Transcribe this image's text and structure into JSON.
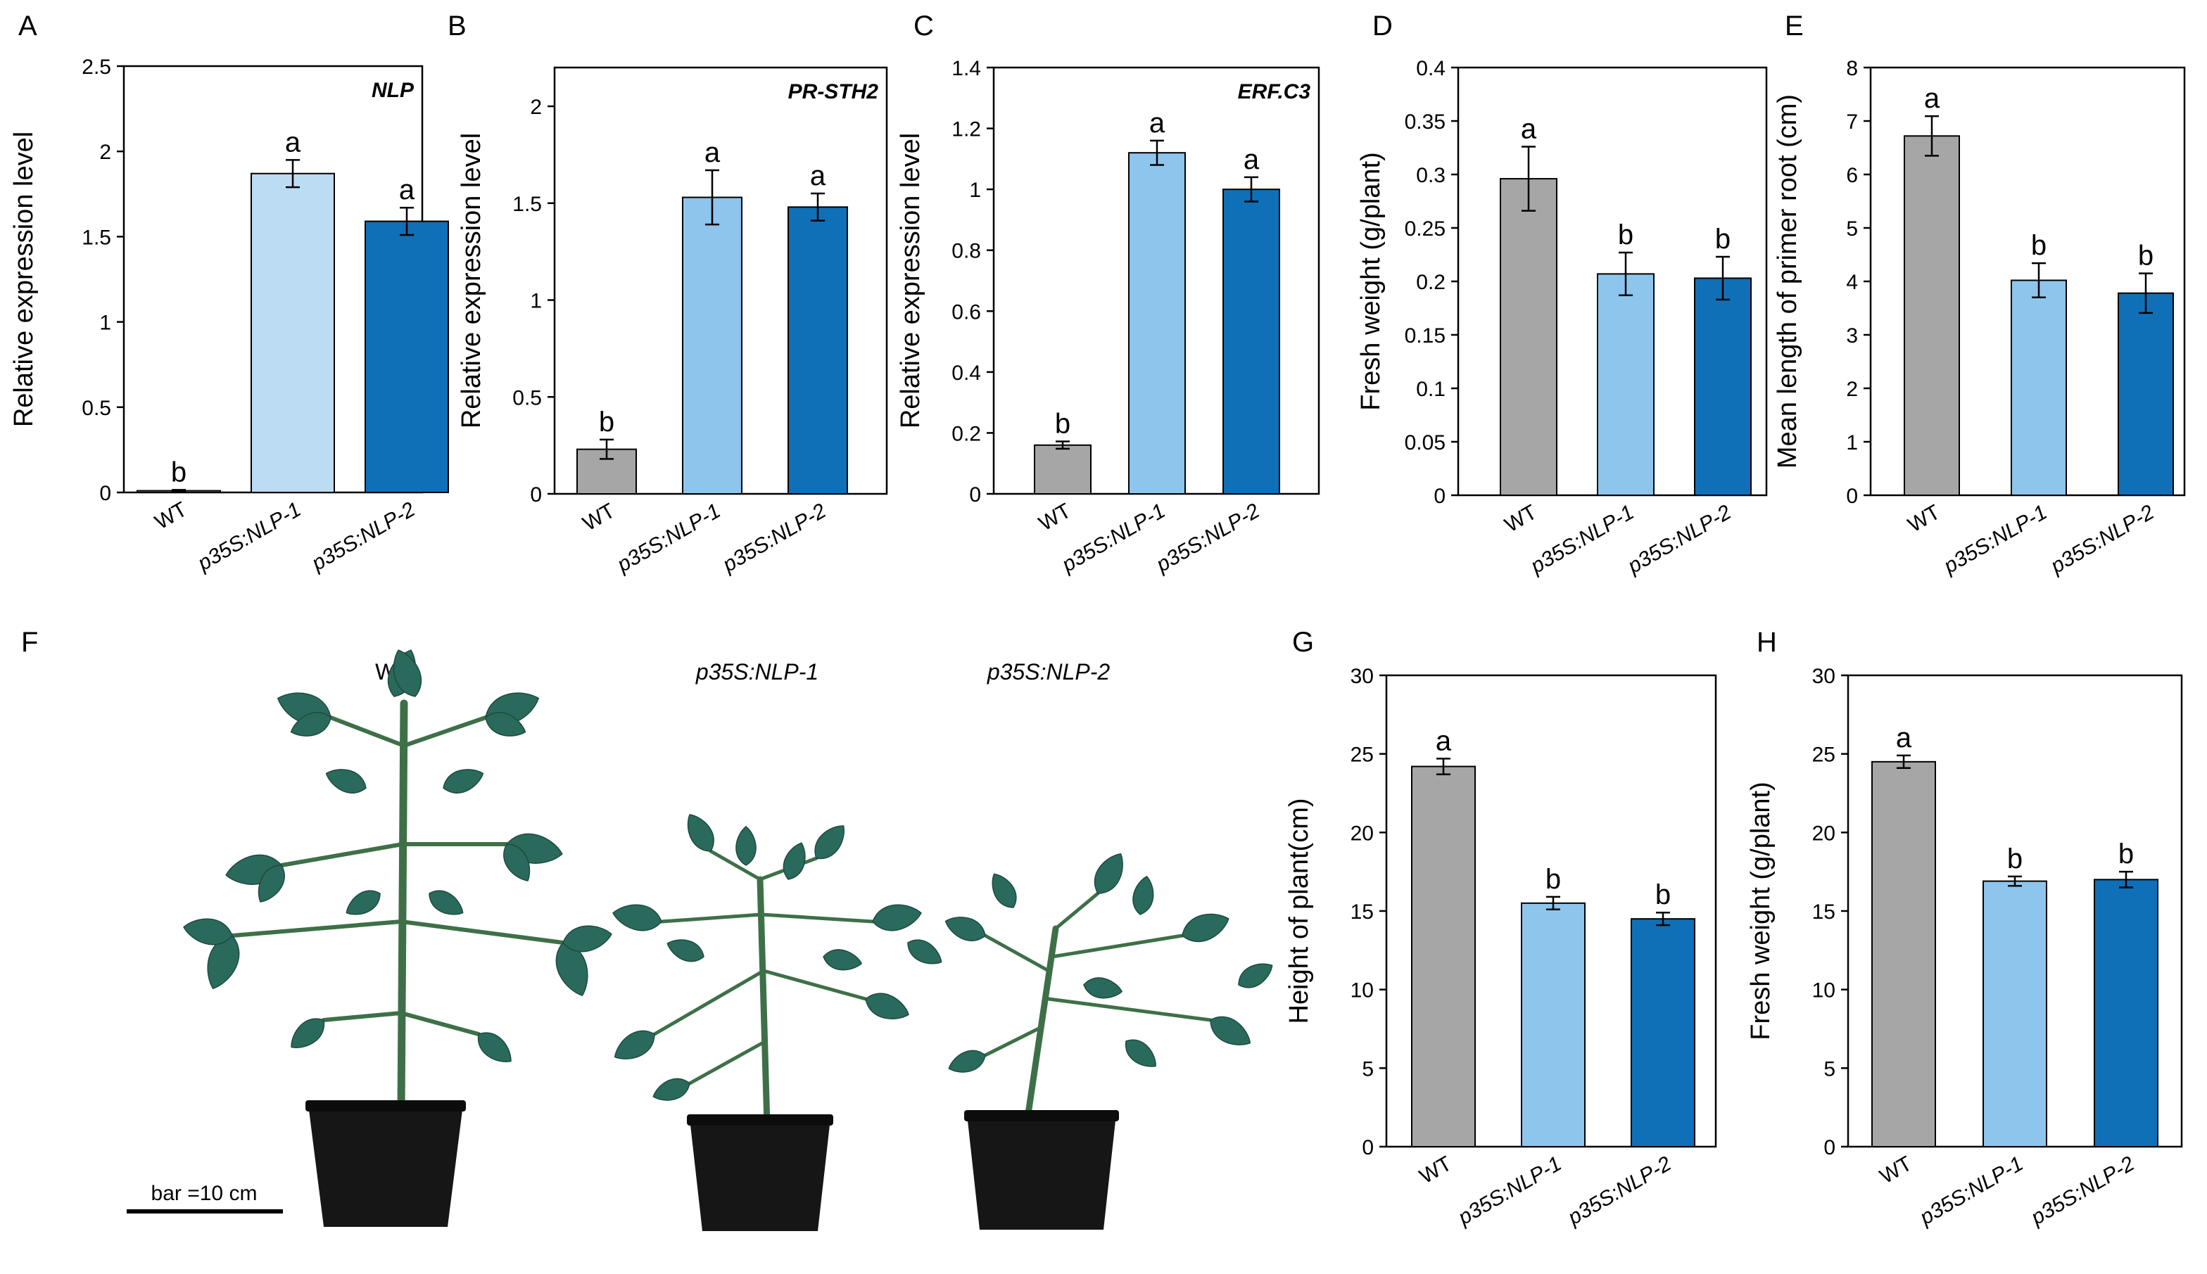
{
  "panel_letters": [
    "A",
    "B",
    "C",
    "D",
    "E",
    "F",
    "G",
    "H"
  ],
  "colors": {
    "wt": "#a6a6a6",
    "line1": "#8ec5ec",
    "line2": "#0f70b8",
    "light_blue_a": "#bcdcf3",
    "stem": "#3e7048",
    "leaf": "#2a6a5c",
    "pot": "#161616"
  },
  "photo": {
    "labels": [
      "WT",
      "p35S:NLP-1",
      "p35S:NLP-2"
    ],
    "scale_bar_label": "bar =10 cm"
  },
  "chart_data": [
    {
      "id": "A",
      "type": "bar",
      "gene_label": "NLP",
      "categories": [
        "WT",
        "p35S:NLP-1",
        "p35S:NLP-2"
      ],
      "values": [
        0.01,
        1.87,
        1.59
      ],
      "errors": [
        0.005,
        0.08,
        0.08
      ],
      "significance": [
        "b",
        "a",
        "a"
      ],
      "ylabel": "Relative expression  level",
      "ylim": [
        0,
        2.5
      ],
      "yticks": [
        0,
        0.5,
        1,
        1.5,
        2,
        2.5
      ],
      "ytick_labels": [
        "0",
        "0.5",
        "1",
        "1.5",
        "2",
        "2.5"
      ]
    },
    {
      "id": "B",
      "type": "bar",
      "gene_label": "PR-STH2",
      "categories": [
        "WT",
        "p35S:NLP-1",
        "p35S:NLP-2"
      ],
      "values": [
        0.23,
        1.53,
        1.48
      ],
      "errors": [
        0.05,
        0.14,
        0.07
      ],
      "significance": [
        "b",
        "a",
        "a"
      ],
      "ylabel": "Relative expression level",
      "ylim": [
        0,
        2.2
      ],
      "yticks": [
        0,
        0.5,
        1,
        1.5,
        2
      ],
      "ytick_labels": [
        "0",
        "0.5",
        "1",
        "1.5",
        "2"
      ]
    },
    {
      "id": "C",
      "type": "bar",
      "gene_label": "ERF.C3",
      "categories": [
        "WT",
        "p35S:NLP-1",
        "p35S:NLP-2"
      ],
      "values": [
        0.16,
        1.12,
        1.0
      ],
      "errors": [
        0.012,
        0.04,
        0.04
      ],
      "significance": [
        "b",
        "a",
        "a"
      ],
      "ylabel": "Relative  expression level",
      "ylim": [
        0,
        1.4
      ],
      "yticks": [
        0,
        0.2,
        0.4,
        0.6,
        0.8,
        1,
        1.2,
        1.4
      ],
      "ytick_labels": [
        "0",
        "0.2",
        "0.4",
        "0.6",
        "0.8",
        "1",
        "1.2",
        "1.4"
      ]
    },
    {
      "id": "D",
      "type": "bar",
      "gene_label": "",
      "categories": [
        "WT",
        "p35S:NLP-1",
        "p35S:NLP-2"
      ],
      "values": [
        0.296,
        0.207,
        0.203
      ],
      "errors": [
        0.03,
        0.02,
        0.02
      ],
      "significance": [
        "a",
        "b",
        "b"
      ],
      "ylabel": "Fresh weight (g/plant)",
      "ylim": [
        0,
        0.4
      ],
      "yticks": [
        0,
        0.05,
        0.1,
        0.15,
        0.2,
        0.25,
        0.3,
        0.35,
        0.4
      ],
      "ytick_labels": [
        "0",
        "0.05",
        "0.1",
        "0.15",
        "0.2",
        "0.25",
        "0.3",
        "0.35",
        "0.4"
      ]
    },
    {
      "id": "E",
      "type": "bar",
      "gene_label": "",
      "categories": [
        "WT",
        "p35S:NLP-1",
        "p35S:NLP-2"
      ],
      "values": [
        6.72,
        4.02,
        3.78
      ],
      "errors": [
        0.37,
        0.32,
        0.37
      ],
      "significance": [
        "a",
        "b",
        "b"
      ],
      "ylabel": "Mean length of primer root (cm)",
      "ylim": [
        0,
        8
      ],
      "yticks": [
        0,
        1,
        2,
        3,
        4,
        5,
        6,
        7,
        8
      ],
      "ytick_labels": [
        "0",
        "1",
        "2",
        "3",
        "4",
        "5",
        "6",
        "7",
        "8"
      ]
    },
    {
      "id": "G",
      "type": "bar",
      "gene_label": "",
      "categories": [
        "WT",
        "p35S:NLP-1",
        "p35S:NLP-2"
      ],
      "values": [
        24.2,
        15.5,
        14.5
      ],
      "errors": [
        0.5,
        0.4,
        0.4
      ],
      "significance": [
        "a",
        "b",
        "b"
      ],
      "ylabel": "Height of plant(cm)",
      "ylim": [
        0,
        30
      ],
      "yticks": [
        0,
        5,
        10,
        15,
        20,
        25,
        30
      ],
      "ytick_labels": [
        "0",
        "5",
        "10",
        "15",
        "20",
        "25",
        "30"
      ]
    },
    {
      "id": "H",
      "type": "bar",
      "gene_label": "",
      "categories": [
        "WT",
        "p35S:NLP-1",
        "p35S:NLP-2"
      ],
      "values": [
        24.5,
        16.9,
        17.0
      ],
      "errors": [
        0.4,
        0.3,
        0.5
      ],
      "significance": [
        "a",
        "b",
        "b"
      ],
      "ylabel": "Fresh weight (g/plant)",
      "ylim": [
        0,
        30
      ],
      "yticks": [
        0,
        5,
        10,
        15,
        20,
        25,
        30
      ],
      "ytick_labels": [
        "0",
        "5",
        "10",
        "15",
        "20",
        "25",
        "30"
      ]
    }
  ]
}
